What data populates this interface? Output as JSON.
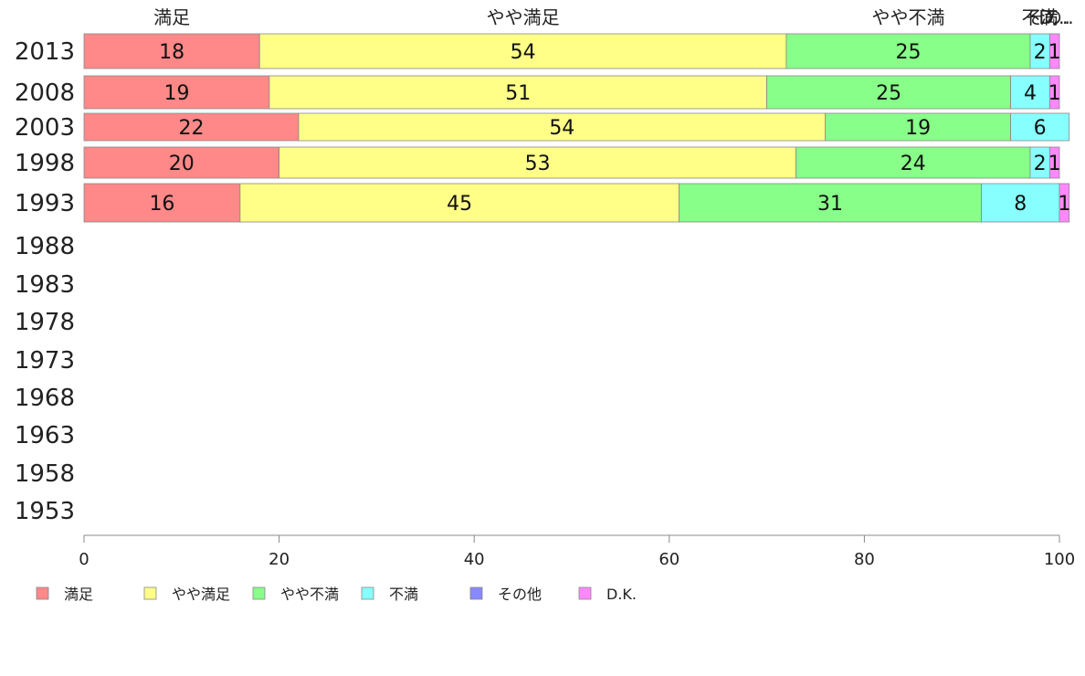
{
  "chart_data": {
    "type": "bar",
    "orientation": "horizontal",
    "stacked": true,
    "categories": [
      "2013",
      "2008",
      "2003",
      "1998",
      "1993",
      "1988",
      "1983",
      "1978",
      "1973",
      "1968",
      "1963",
      "1958",
      "1953"
    ],
    "series": [
      {
        "name": "満足",
        "color": "#ff8888",
        "values": [
          18,
          19,
          22,
          20,
          16,
          null,
          null,
          null,
          null,
          null,
          null,
          null,
          null
        ]
      },
      {
        "name": "やや満足",
        "color": "#ffff88",
        "values": [
          54,
          51,
          54,
          53,
          45,
          null,
          null,
          null,
          null,
          null,
          null,
          null,
          null
        ]
      },
      {
        "name": "やや不満",
        "color": "#88ff88",
        "values": [
          25,
          25,
          19,
          24,
          31,
          null,
          null,
          null,
          null,
          null,
          null,
          null,
          null
        ]
      },
      {
        "name": "不満",
        "color": "#88ffff",
        "values": [
          2,
          4,
          6,
          2,
          8,
          null,
          null,
          null,
          null,
          null,
          null,
          null,
          null
        ]
      },
      {
        "name": "その他",
        "color": "#8888ff",
        "values": [
          0,
          0,
          0,
          0,
          0,
          null,
          null,
          null,
          null,
          null,
          null,
          null,
          null
        ]
      },
      {
        "name": "D.K.",
        "color": "#ff88ff",
        "values": [
          1,
          1,
          0,
          1,
          1,
          null,
          null,
          null,
          null,
          null,
          null,
          null,
          null
        ]
      }
    ],
    "column_labels": [
      "満足",
      "やや満足",
      "やや不満",
      "不満",
      "その..",
      "D..."
    ],
    "xlim": [
      0,
      100
    ],
    "x_ticks": [
      "0",
      "20",
      "40",
      "60",
      "80",
      "100"
    ],
    "legend_position": "bottom",
    "grid": false
  }
}
